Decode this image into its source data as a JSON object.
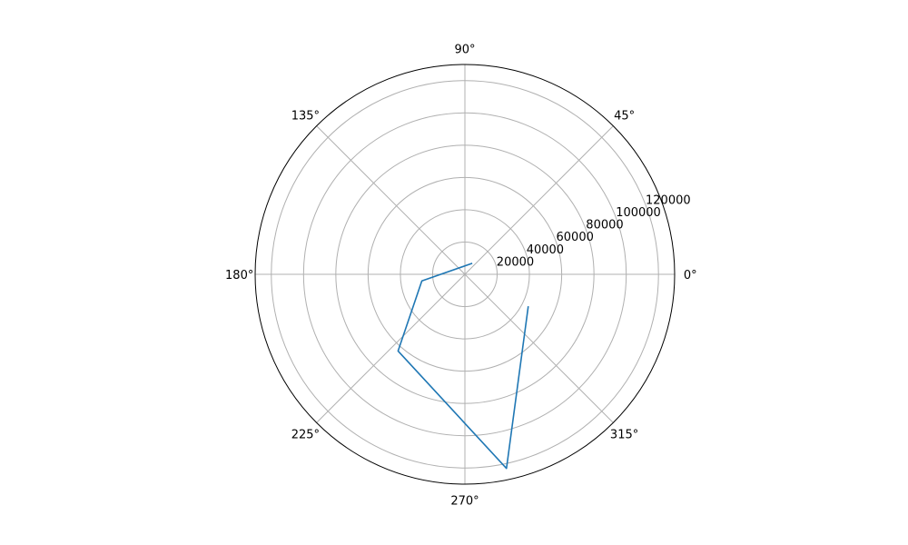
{
  "chart_data": {
    "type": "line",
    "projection": "polar",
    "title": "",
    "angular_tick_labels": [
      "0°",
      "45°",
      "90°",
      "135°",
      "180°",
      "225°",
      "270°",
      "315°"
    ],
    "angular_ticks_deg": [
      0,
      45,
      90,
      135,
      180,
      225,
      270,
      315
    ],
    "radial_tick_labels": [
      "20000",
      "40000",
      "60000",
      "80000",
      "100000",
      "120000"
    ],
    "radial_ticks": [
      20000,
      40000,
      60000,
      80000,
      100000,
      120000
    ],
    "rlim": [
      0,
      130000
    ],
    "grid": true,
    "series": [
      {
        "theta_deg": [
          333.3,
          282.1,
          228.9,
          188.8,
          56.2
        ],
        "r": [
          44000,
          123000,
          63000,
          27000,
          8200
        ]
      }
    ],
    "colors": {
      "series": "#1f77b4",
      "grid": "#b0b0b0",
      "frame": "#000000"
    }
  }
}
